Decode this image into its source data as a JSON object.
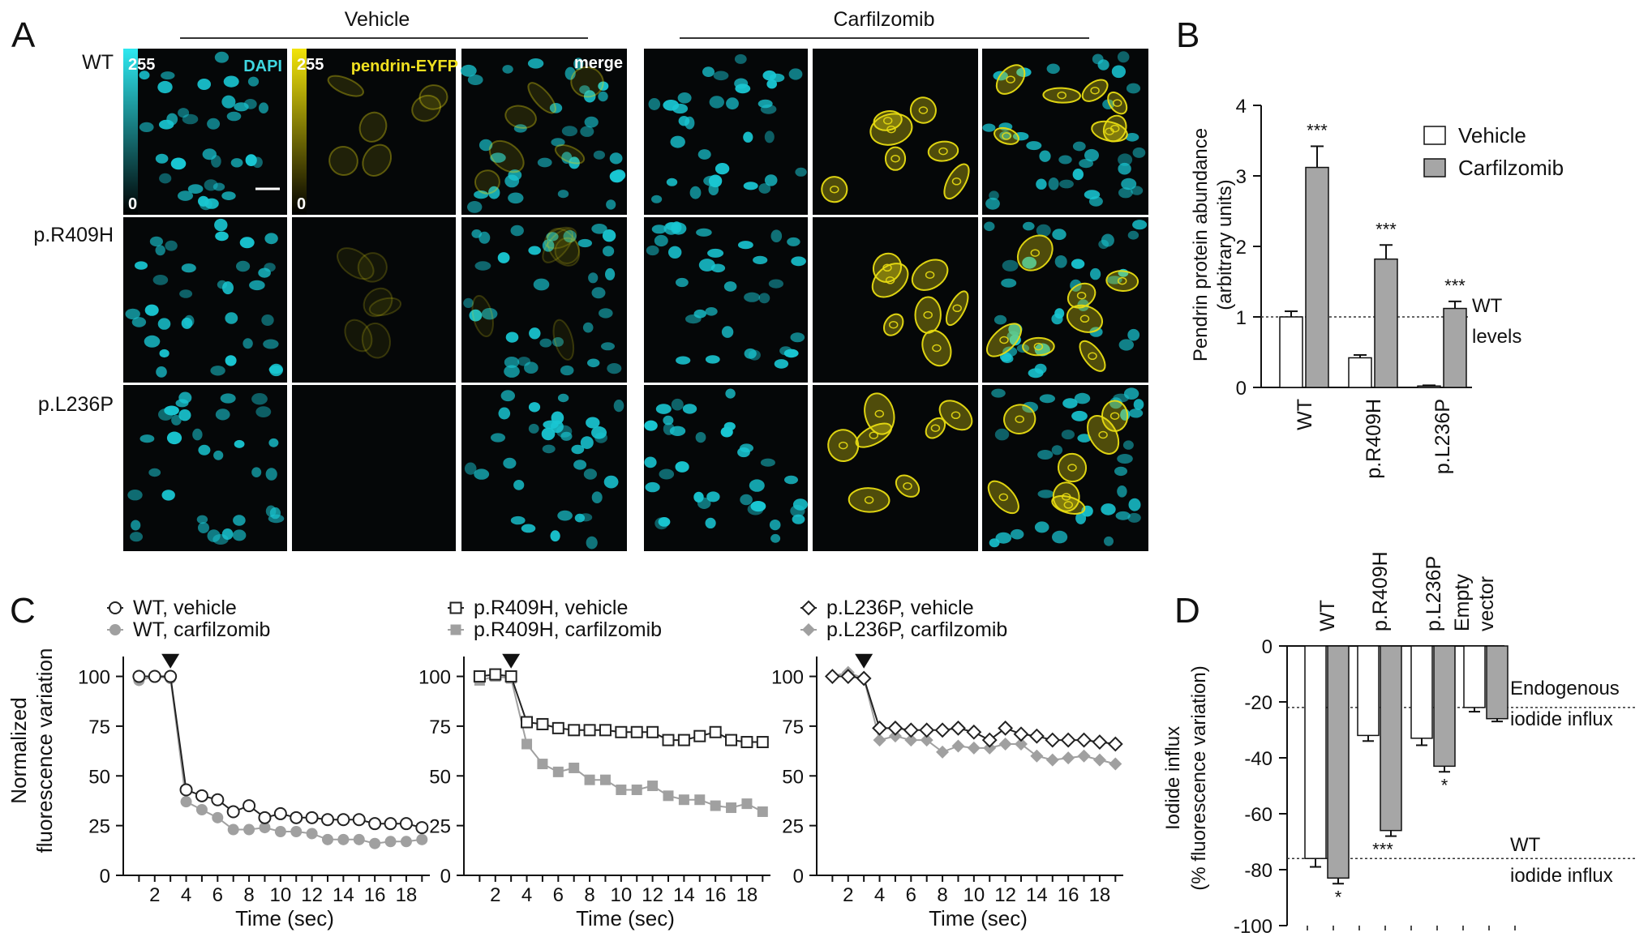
{
  "panel_labels": {
    "A": "A",
    "B": "B",
    "C": "C",
    "D": "D"
  },
  "panel_a": {
    "vehicle_title": "Vehicle",
    "carfilzomib_title": "Carfilzomib",
    "row_labels": [
      "WT",
      "p.R409H",
      "p.L236P"
    ],
    "channel_labels": {
      "dapi": "DAPI",
      "pendrin": "pendrin-EYFP",
      "merge": "merge"
    },
    "scale_dapi": {
      "max": "255",
      "min": "0"
    },
    "scale_pendrin": {
      "max": "255",
      "min": "0"
    },
    "colors": {
      "dapi": "#19c6d2",
      "eyfp": "#e8dc12",
      "background": "#050708"
    },
    "intensity_pendrin": [
      [
        0.35,
        0.95
      ],
      [
        0.2,
        0.95
      ],
      [
        0.02,
        0.95
      ]
    ]
  },
  "chart_data": [
    {
      "panel": "B",
      "type": "bar",
      "ylabel": "Pendrin protein abundance (arbitrary units)",
      "ylabel_lines": [
        "Pendrin protein abundance",
        "(arbitrary units)"
      ],
      "ylim": [
        0,
        4
      ],
      "yticks": [
        "0",
        "1",
        "2",
        "3",
        "4"
      ],
      "categories": [
        "WT",
        "p.R409H",
        "p.L236P"
      ],
      "series": [
        {
          "name": "Vehicle",
          "values": [
            1.0,
            0.42,
            0.02
          ],
          "errors": [
            0.08,
            0.04,
            0.01
          ],
          "color": "#ffffff"
        },
        {
          "name": "Carfilzomib",
          "values": [
            3.12,
            1.82,
            1.12
          ],
          "errors": [
            0.3,
            0.2,
            0.1
          ],
          "color": "#a6a6a6"
        }
      ],
      "significance": [
        "***",
        "***",
        "***"
      ],
      "reference_line": {
        "y": 1.0,
        "label_lines": [
          "WT",
          "levels"
        ]
      },
      "legend": "top-right"
    },
    {
      "panel": "C",
      "type": "line",
      "xlabel": "Time (sec)",
      "ylabel": "Normalized fluorescence variation",
      "ylabel_lines": [
        "Normalized",
        "fluorescence variation"
      ],
      "ylim": [
        0,
        110
      ],
      "xlim": [
        0,
        19.5
      ],
      "yticks": [
        "0",
        "25",
        "50",
        "75",
        "100"
      ],
      "xticks": [
        "2",
        "4",
        "6",
        "8",
        "10",
        "12",
        "14",
        "16",
        "18"
      ],
      "arrow_at_x": 3,
      "x": [
        1,
        2,
        3,
        4,
        5,
        6,
        7,
        8,
        9,
        10,
        11,
        12,
        13,
        14,
        15,
        16,
        17,
        18,
        19
      ],
      "subplots": [
        {
          "marker": "circle",
          "series": [
            {
              "name": "WT, vehicle",
              "values": [
                100,
                100,
                100,
                43,
                40,
                38,
                32,
                35,
                29,
                31,
                29,
                29,
                28,
                28,
                28,
                26,
                26,
                26,
                24
              ]
            },
            {
              "name": "WT, carfilzomib",
              "values": [
                98,
                100,
                99,
                37,
                33,
                29,
                23,
                23,
                24,
                22,
                22,
                21,
                18,
                18,
                18,
                16,
                17,
                17,
                18
              ]
            }
          ]
        },
        {
          "marker": "square",
          "series": [
            {
              "name": "p.R409H, vehicle",
              "values": [
                100,
                101,
                100,
                77,
                76,
                74,
                73,
                73,
                73,
                72,
                72,
                72,
                68,
                68,
                70,
                72,
                68,
                67,
                67
              ]
            },
            {
              "name": "p.R409H, carfilzomib",
              "values": [
                98,
                100,
                99,
                66,
                56,
                52,
                54,
                48,
                48,
                43,
                43,
                45,
                40,
                38,
                38,
                35,
                34,
                36,
                32
              ]
            }
          ]
        },
        {
          "marker": "diamond",
          "series": [
            {
              "name": "p.L236P, vehicle",
              "values": [
                100,
                100,
                99,
                74,
                74,
                73,
                73,
                73,
                74,
                72,
                68,
                74,
                71,
                70,
                68,
                68,
                68,
                67,
                66
              ]
            },
            {
              "name": "p.L236P, carfilzomib",
              "values": [
                100,
                102,
                99,
                68,
                70,
                68,
                68,
                62,
                65,
                64,
                64,
                66,
                66,
                60,
                58,
                59,
                60,
                58,
                56
              ]
            }
          ]
        }
      ]
    },
    {
      "panel": "D",
      "type": "bar",
      "ylabel": "Iodide influx (% fluorescence variation)",
      "ylabel_lines": [
        "Iodide influx",
        "(% fluorescence variation)"
      ],
      "ylim": [
        -100,
        0
      ],
      "yticks": [
        "0",
        "-20",
        "-40",
        "-60",
        "-80",
        "-100"
      ],
      "categories": [
        "WT",
        "p.R409H",
        "p.L236P",
        "Empty vector"
      ],
      "category_label_lines": [
        [
          "WT"
        ],
        [
          "p.R409H"
        ],
        [
          "p.L236P"
        ],
        [
          "Empty",
          "vector"
        ]
      ],
      "series": [
        {
          "name": "Vehicle",
          "values": [
            -76,
            -32,
            -33,
            -22
          ],
          "errors": [
            3,
            2,
            2.5,
            1.5
          ],
          "color": "#ffffff"
        },
        {
          "name": "Carfilzomib",
          "values": [
            -83,
            -66,
            -43,
            -26
          ],
          "errors": [
            2,
            2,
            2,
            1
          ],
          "color": "#a6a6a6"
        }
      ],
      "significance": [
        "*",
        "***",
        "*",
        ""
      ],
      "reference_lines": [
        {
          "y": -22,
          "label_lines": [
            "Endogenous",
            "iodide influx"
          ]
        },
        {
          "y": -76,
          "label_lines": [
            "WT",
            "iodide influx"
          ]
        }
      ]
    }
  ]
}
